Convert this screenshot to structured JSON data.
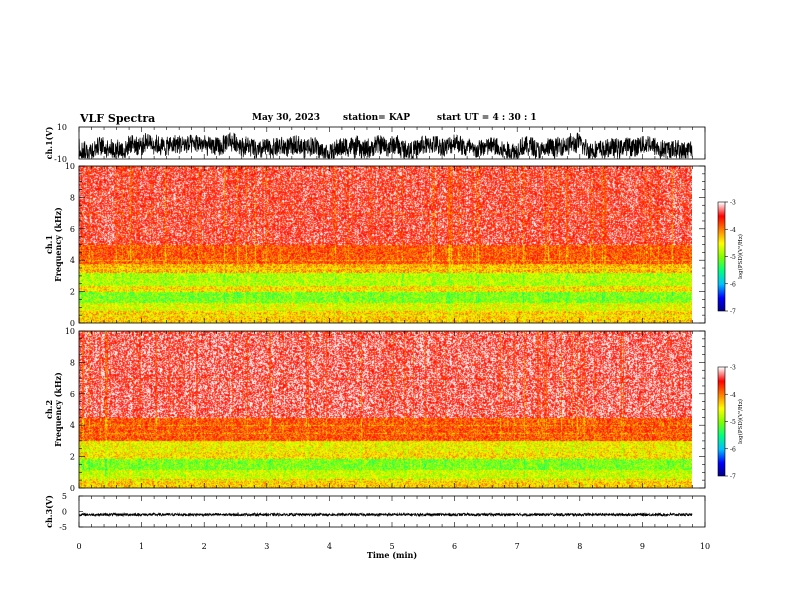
{
  "header": {
    "title": "VLF Spectra",
    "date": "May 30, 2023",
    "station": "station= KAP",
    "start": "start  UT =   4 : 30 : 1"
  },
  "chart_data": [
    {
      "type": "line",
      "panel": "ch1-waveform",
      "ylabel": "ch.1(V)",
      "ylim": [
        -10,
        10
      ],
      "ytick_labels": [
        "10",
        "-10"
      ],
      "xlim": [
        0,
        10
      ],
      "data_extent_min": 9.8,
      "description_values": "noise waveform, amplitude mostly between -8 and 8 V"
    },
    {
      "type": "heatmap",
      "panel": "ch1-spectrogram",
      "ylabel": "ch.1\nFrequency  (kHz)",
      "ylim": [
        0,
        10
      ],
      "yticks": [
        0,
        2,
        4,
        6,
        8,
        10
      ],
      "xlim": [
        0,
        10
      ],
      "data_extent_min": 9.8,
      "bands": [
        {
          "from": 0.0,
          "to": 0.8,
          "level": -4.3
        },
        {
          "from": 0.8,
          "to": 1.3,
          "level": -4.6
        },
        {
          "from": 1.3,
          "to": 2.0,
          "level": -5.0
        },
        {
          "from": 2.0,
          "to": 2.4,
          "level": -4.4
        },
        {
          "from": 2.4,
          "to": 3.2,
          "level": -4.8
        },
        {
          "from": 3.2,
          "to": 3.8,
          "level": -4.2
        },
        {
          "from": 3.8,
          "to": 5.0,
          "level": -3.8
        },
        {
          "from": 5.0,
          "to": 10.0,
          "level": -3.4
        }
      ],
      "colorbar": {
        "label": "log(PSD)(V²/Hz)",
        "ticks": [
          "-3",
          "-4",
          "-5",
          "-6",
          "-7"
        ],
        "range": [
          -7,
          -3
        ]
      }
    },
    {
      "type": "heatmap",
      "panel": "ch2-spectrogram",
      "ylabel": "ch.2\nFrequency  (kHz)",
      "ylim": [
        0,
        10
      ],
      "yticks": [
        0,
        2,
        4,
        6,
        8,
        10
      ],
      "xlim": [
        0,
        10
      ],
      "data_extent_min": 9.8,
      "bands": [
        {
          "from": 0.0,
          "to": 0.6,
          "level": -4.3
        },
        {
          "from": 0.6,
          "to": 1.2,
          "level": -4.7
        },
        {
          "from": 1.2,
          "to": 1.9,
          "level": -5.0
        },
        {
          "from": 1.9,
          "to": 2.3,
          "level": -4.4
        },
        {
          "from": 2.3,
          "to": 3.0,
          "level": -4.5
        },
        {
          "from": 3.0,
          "to": 4.5,
          "level": -3.8
        },
        {
          "from": 4.5,
          "to": 10.0,
          "level": -3.3
        }
      ],
      "colorbar": {
        "label": "log(PSD)(V²/Hz)",
        "ticks": [
          "-3",
          "-4",
          "-5",
          "-6",
          "-7"
        ],
        "range": [
          -7,
          -3
        ]
      }
    },
    {
      "type": "line",
      "panel": "ch3-waveform",
      "ylabel": "ch.3(V)",
      "ylim": [
        -5,
        5
      ],
      "ytick_labels": [
        "5",
        "0",
        "-5"
      ],
      "xlim": [
        0,
        10
      ],
      "data_extent_min": 9.8,
      "xlabel": "Time  (min)",
      "xticks": [
        0,
        1,
        2,
        3,
        4,
        5,
        6,
        7,
        8,
        9,
        10
      ],
      "description_values": "near-constant signal around -1 V"
    }
  ],
  "colors": {
    "axis": "#000000",
    "cmap": [
      "#000080",
      "#0000ff",
      "#00c0ff",
      "#00ff80",
      "#80ff00",
      "#ffff00",
      "#ff8000",
      "#ff0000",
      "#ffffff"
    ]
  }
}
